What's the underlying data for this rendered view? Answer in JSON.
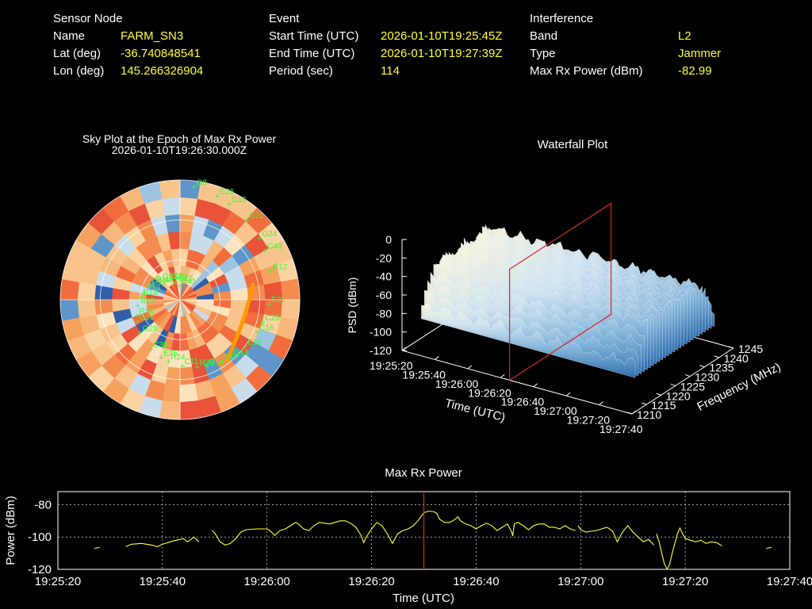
{
  "info": {
    "sensor": {
      "heading": "Sensor Node",
      "rows": [
        {
          "label": "Name",
          "value": "FARM_SN3"
        },
        {
          "label": "Lat (deg)",
          "value": "-36.740848541"
        },
        {
          "label": "Lon (deg)",
          "value": "145.266326904"
        }
      ]
    },
    "event": {
      "heading": "Event",
      "rows": [
        {
          "label": "Start Time (UTC)",
          "value": "2026-01-10T19:25:45Z"
        },
        {
          "label": "End Time (UTC)",
          "value": "2026-01-10T19:27:39Z"
        },
        {
          "label": "Period (sec)",
          "value": "114"
        }
      ]
    },
    "interference": {
      "heading": "Interference",
      "rows": [
        {
          "label": "Band",
          "value": "L2"
        },
        {
          "label": "Type",
          "value": "Jammer"
        },
        {
          "label": "Max Rx Power (dBm)",
          "value": "-82.99"
        }
      ]
    }
  },
  "colors": {
    "label": "#ffffff",
    "value": "#ffff33",
    "trace": "#ffff33",
    "marker": "#dd2222",
    "sat": "#33ff33",
    "grid": "#ffffff"
  },
  "chart_data": [
    {
      "type": "heatmap",
      "title": "Sky Plot at the Epoch of Max Rx Power",
      "subtitle": "2026-01-10T19:26:30.000Z",
      "satellites": [
        "C41",
        "G18",
        "E14",
        "G24",
        "R24",
        "E11",
        "C23",
        "G10",
        "C26",
        "G14",
        "G12",
        "R12",
        "C30",
        "G22",
        "E22",
        "R17",
        "G21",
        "C11",
        "G31",
        "E21",
        "G28",
        "G8",
        "G27",
        "E13",
        "C43",
        "E35",
        "C29",
        "C16",
        "R14",
        "G16",
        "R23",
        "R11"
      ],
      "trajectory_color": "#ff9900"
    },
    {
      "type": "area",
      "title": "Waterfall Plot",
      "xlabel": "Time (UTC)",
      "ylabel": "Frequency (MHz)",
      "zlabel": "PSD (dBm)",
      "x_ticks": [
        "19:25:20",
        "19:25:40",
        "19:26:00",
        "19:26:20",
        "19:26:40",
        "19:27:00",
        "19:27:20",
        "19:27:40"
      ],
      "y_ticks": [
        "1210",
        "1215",
        "1220",
        "1225",
        "1230",
        "1235",
        "1240",
        "1245"
      ],
      "z_ticks": [
        "0",
        "-20",
        "-40",
        "-60",
        "-80",
        "-100",
        "-120"
      ],
      "zlim": [
        -120,
        0
      ],
      "marker_time": "19:26:30",
      "surface_level_dbm": -38
    },
    {
      "type": "line",
      "title": "Max Rx Power",
      "xlabel": "Time (UTC)",
      "ylabel": "Power (dBm)",
      "x_ticks": [
        "19:25:20",
        "19:25:40",
        "19:26:00",
        "19:26:20",
        "19:26:40",
        "19:27:00",
        "19:27:20",
        "19:27:40"
      ],
      "y_ticks": [
        "-80",
        "-100",
        "-120"
      ],
      "xlim_sec": [
        0,
        140
      ],
      "ylim": [
        -120,
        -72
      ],
      "grid": true,
      "marker_sec": 70,
      "series": [
        {
          "segments": [
            [
              [
                7,
                -107
              ],
              [
                8,
                -106.5
              ]
            ],
            [
              [
                13,
                -106
              ],
              [
                14,
                -104.5
              ],
              [
                16,
                -104
              ],
              [
                18,
                -105
              ],
              [
                19,
                -106
              ],
              [
                20,
                -104.5
              ],
              [
                22,
                -102.5
              ],
              [
                24,
                -101
              ],
              [
                24.8,
                -103
              ],
              [
                25.5,
                -101.5
              ],
              [
                26,
                -100
              ],
              [
                27,
                -103
              ]
            ],
            [
              [
                29.5,
                -96
              ],
              [
                30,
                -97.5
              ],
              [
                31,
                -103
              ],
              [
                32,
                -105
              ],
              [
                33,
                -104
              ],
              [
                34,
                -101
              ],
              [
                35,
                -97
              ],
              [
                36,
                -95.5
              ],
              [
                38,
                -95
              ],
              [
                40,
                -95
              ],
              [
                40.5,
                -96
              ],
              [
                41.5,
                -99
              ],
              [
                42.5,
                -96
              ],
              [
                43.5,
                -95
              ],
              [
                44.5,
                -93
              ],
              [
                45.5,
                -91
              ],
              [
                46,
                -92
              ],
              [
                47,
                -95
              ],
              [
                48,
                -96
              ],
              [
                49,
                -93
              ],
              [
                50,
                -91
              ],
              [
                52,
                -92
              ],
              [
                53,
                -91
              ],
              [
                54,
                -90
              ],
              [
                55,
                -90
              ],
              [
                56,
                -91.5
              ],
              [
                57,
                -94
              ],
              [
                58,
                -99
              ],
              [
                58.5,
                -103.5
              ],
              [
                59,
                -100
              ],
              [
                60,
                -95
              ],
              [
                61,
                -91
              ],
              [
                62,
                -93
              ],
              [
                63,
                -98
              ],
              [
                64,
                -104
              ],
              [
                65,
                -98
              ],
              [
                66,
                -96
              ],
              [
                67,
                -95
              ],
              [
                68,
                -93
              ],
              [
                69,
                -89.5
              ],
              [
                70,
                -85
              ],
              [
                71,
                -84
              ],
              [
                72,
                -84.5
              ],
              [
                72.5,
                -85.5
              ],
              [
                73,
                -89
              ],
              [
                74,
                -91
              ],
              [
                75,
                -91
              ],
              [
                76,
                -89
              ],
              [
                76.5,
                -87.5
              ],
              [
                77,
                -90
              ],
              [
                78,
                -92
              ],
              [
                79,
                -93
              ],
              [
                80,
                -95
              ],
              [
                81,
                -93
              ],
              [
                82,
                -91.5
              ],
              [
                83,
                -93
              ],
              [
                84,
                -96
              ],
              [
                85,
                -94
              ],
              [
                86,
                -92
              ],
              [
                86.8,
                -97
              ],
              [
                87,
                -99.5
              ],
              [
                87.3,
                -92
              ],
              [
                88,
                -91
              ],
              [
                89,
                -93
              ],
              [
                90,
                -95.5
              ],
              [
                91,
                -93
              ],
              [
                92,
                -92
              ],
              [
                93,
                -92
              ],
              [
                94,
                -94
              ],
              [
                95,
                -94
              ],
              [
                96,
                -95
              ],
              [
                97,
                -93
              ],
              [
                98,
                -95
              ],
              [
                99,
                -96
              ]
            ],
            [
              [
                99.5,
                -93
              ],
              [
                100,
                -95.5
              ],
              [
                101,
                -97
              ],
              [
                102,
                -96.5
              ],
              [
                103,
                -96
              ],
              [
                104,
                -95
              ],
              [
                105,
                -94
              ],
              [
                106,
                -96
              ],
              [
                106.5,
                -99
              ],
              [
                107,
                -103
              ],
              [
                108,
                -97
              ],
              [
                109,
                -93
              ],
              [
                110,
                -97
              ],
              [
                111,
                -100
              ],
              [
                112,
                -103
              ],
              [
                113,
                -101.5
              ],
              [
                114,
                -105
              ]
            ],
            [
              [
                114.5,
                -98
              ],
              [
                115,
                -103
              ],
              [
                115.5,
                -110
              ],
              [
                116,
                -116.5
              ],
              [
                116.5,
                -119.8
              ],
              [
                117,
                -117
              ],
              [
                117.5,
                -110
              ],
              [
                118,
                -104
              ],
              [
                118.5,
                -98
              ],
              [
                119,
                -94.5
              ],
              [
                119.5,
                -98
              ],
              [
                120,
                -101
              ],
              [
                121,
                -102
              ],
              [
                122,
                -103
              ],
              [
                123,
                -102
              ],
              [
                124,
                -104
              ],
              [
                125,
                -103
              ],
              [
                126,
                -103.5
              ],
              [
                127,
                -105.5
              ]
            ],
            [
              [
                135.5,
                -107
              ],
              [
                136.5,
                -106.5
              ]
            ]
          ]
        }
      ]
    }
  ]
}
